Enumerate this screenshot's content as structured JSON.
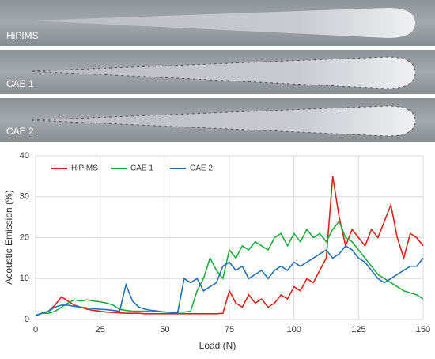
{
  "images": [
    {
      "label": "HiPIMS"
    },
    {
      "label": "CAE 1"
    },
    {
      "label": "CAE 2"
    }
  ],
  "chart_data": {
    "type": "line",
    "xlabel": "Load (N)",
    "ylabel": "Acoustic Emission (%)",
    "xlim": [
      0,
      150
    ],
    "xticks": [
      0,
      25,
      50,
      75,
      100,
      125,
      150
    ],
    "ylim": [
      0,
      40
    ],
    "yticks": [
      0,
      10,
      20,
      30,
      40
    ],
    "grid": true,
    "x": [
      0,
      2.5,
      5,
      7.5,
      10,
      12.5,
      15,
      17.5,
      20,
      22.5,
      25,
      27.5,
      30,
      32.5,
      35,
      37.5,
      40,
      42.5,
      45,
      47.5,
      50,
      52.5,
      55,
      57.5,
      60,
      62.5,
      65,
      67.5,
      70,
      72.5,
      75,
      77.5,
      80,
      82.5,
      85,
      87.5,
      90,
      92.5,
      95,
      97.5,
      100,
      102.5,
      105,
      107.5,
      110,
      112.5,
      115,
      117.5,
      120,
      122.5,
      125,
      127.5,
      130,
      132.5,
      135,
      137.5,
      140,
      142.5,
      145,
      147.5,
      150
    ],
    "series": [
      {
        "name": "HiPIMS",
        "color": "#e0201b",
        "values": [
          1,
          1.5,
          2,
          3.5,
          5.5,
          4.5,
          3.5,
          3,
          2.5,
          2.2,
          2,
          1.8,
          1.7,
          1.6,
          1.5,
          1.5,
          1.5,
          1.4,
          1.4,
          1.4,
          1.4,
          1.4,
          1.4,
          1.4,
          1.4,
          1.4,
          1.4,
          1.4,
          1.4,
          1.5,
          7,
          4,
          3,
          6,
          4,
          5,
          3,
          4,
          6,
          5,
          8,
          7,
          10,
          9,
          12,
          15,
          35,
          25,
          18,
          22,
          20,
          18,
          22,
          20,
          24,
          28,
          20,
          15,
          21,
          20,
          18
        ]
      },
      {
        "name": "CAE 1",
        "color": "#1fae3c",
        "values": [
          1,
          1.5,
          1.5,
          2,
          3,
          4,
          4.8,
          4.5,
          4.8,
          4.5,
          4.3,
          4,
          3.5,
          2.5,
          2.2,
          2,
          2,
          2,
          1.9,
          1.9,
          1.8,
          1.8,
          1.8,
          1.8,
          2,
          7,
          10,
          15,
          12,
          10,
          17,
          15,
          18,
          17,
          19,
          18,
          17,
          20,
          21,
          18,
          21,
          19,
          22,
          20,
          21,
          19,
          22,
          24,
          20,
          19,
          17,
          15,
          13,
          11,
          10,
          9,
          8,
          7,
          6.5,
          6,
          5
        ]
      },
      {
        "name": "CAE 2",
        "color": "#1f6fba",
        "values": [
          1,
          1.5,
          2,
          3,
          3.5,
          3.5,
          3.2,
          3,
          2.8,
          2.6,
          2.5,
          2.4,
          2.2,
          2,
          8.5,
          4.5,
          3,
          2.5,
          2.2,
          2,
          1.8,
          1.7,
          1.7,
          10,
          9,
          10,
          7,
          8,
          9,
          13,
          14,
          12,
          13,
          10,
          11,
          12,
          10,
          12,
          13,
          12,
          14,
          13,
          14,
          15,
          16,
          17,
          15,
          16,
          18,
          17,
          15,
          14,
          12,
          10,
          9,
          10,
          11,
          12,
          13,
          13,
          15
        ]
      }
    ]
  }
}
